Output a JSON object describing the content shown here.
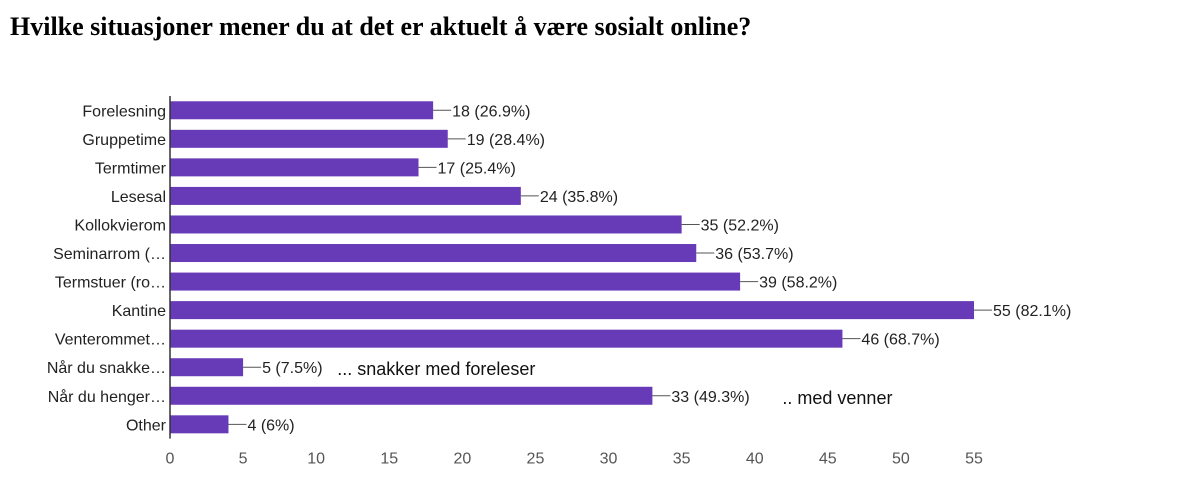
{
  "chart_data": {
    "type": "bar",
    "orientation": "horizontal",
    "title": "Hvilke situasjoner mener du at det er aktuelt å være sosialt online?",
    "categories": [
      "Forelesning",
      "Gruppetime",
      "Termtimer",
      "Lesesal",
      "Kollokvierom",
      "Seminarrom (…",
      "Termstuer (ro…",
      "Kantine",
      "Venterommet…",
      "Når du snakke…",
      "Når du henger…",
      "Other"
    ],
    "values": [
      18,
      19,
      17,
      24,
      35,
      36,
      39,
      55,
      46,
      5,
      33,
      4
    ],
    "data_labels": [
      "18 (26.9%)",
      "19 (28.4%)",
      "17 (25.4%)",
      "24 (35.8%)",
      "35 (52.2%)",
      "36 (53.7%)",
      "39 (58.2%)",
      "55 (82.1%)",
      "46 (68.7%)",
      "5 (7.5%)",
      "33 (49.3%)",
      "4 (6%)"
    ],
    "xticks": [
      0,
      5,
      10,
      15,
      20,
      25,
      30,
      35,
      40,
      45,
      50,
      55
    ],
    "xlim": [
      0,
      55
    ],
    "bar_color": "#673ab7",
    "grid": false,
    "annotations": [
      {
        "category": "Når du snakke…",
        "text": "... snakker med foreleser"
      },
      {
        "category": "Når du henger…",
        "text": ".. med venner"
      }
    ]
  }
}
